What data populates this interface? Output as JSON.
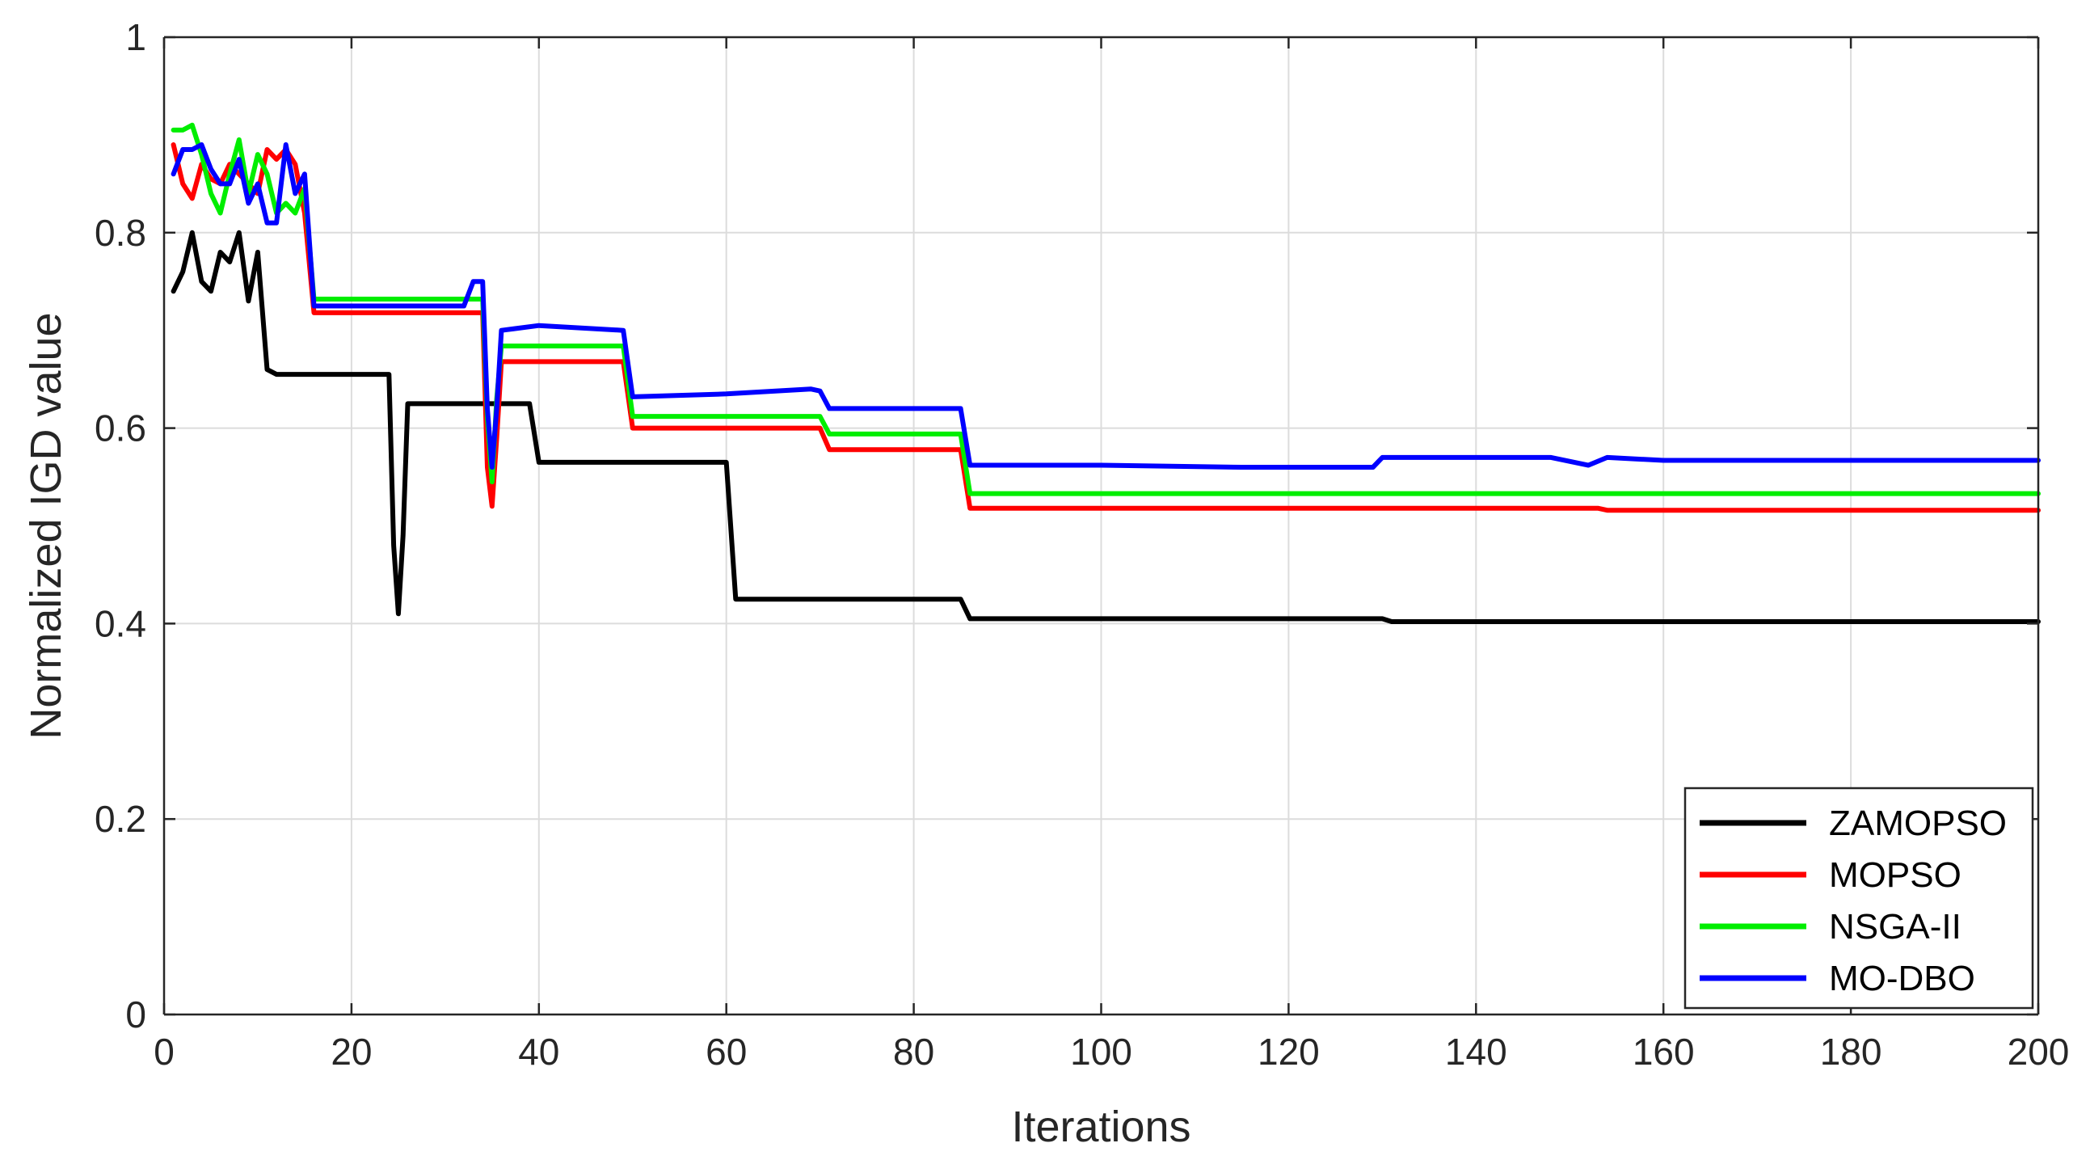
{
  "chart_data": {
    "type": "line",
    "title": "",
    "xlabel": "Iterations",
    "ylabel": "Normalized IGD value",
    "xlim": [
      0,
      200
    ],
    "ylim": [
      0,
      1
    ],
    "xticks": [
      0,
      20,
      40,
      60,
      80,
      100,
      120,
      140,
      160,
      180,
      200
    ],
    "yticks": [
      0,
      0.2,
      0.4,
      0.6,
      0.8,
      1
    ],
    "ytick_labels": [
      "0",
      "0.2",
      "0.4",
      "0.6",
      "0.8",
      "1"
    ],
    "grid": true,
    "legend_position": "bottom-right",
    "series": [
      {
        "name": "ZAMOPSO",
        "color": "#000000",
        "points": [
          [
            1,
            0.74
          ],
          [
            2,
            0.76
          ],
          [
            3,
            0.8
          ],
          [
            4,
            0.75
          ],
          [
            5,
            0.74
          ],
          [
            6,
            0.78
          ],
          [
            7,
            0.77
          ],
          [
            8,
            0.8
          ],
          [
            9,
            0.73
          ],
          [
            10,
            0.78
          ],
          [
            11,
            0.66
          ],
          [
            12,
            0.655
          ],
          [
            24,
            0.655
          ],
          [
            24.5,
            0.48
          ],
          [
            25,
            0.41
          ],
          [
            25.5,
            0.49
          ],
          [
            26,
            0.625
          ],
          [
            39,
            0.625
          ],
          [
            40,
            0.565
          ],
          [
            60,
            0.565
          ],
          [
            61,
            0.425
          ],
          [
            85,
            0.425
          ],
          [
            86,
            0.405
          ],
          [
            130,
            0.405
          ],
          [
            131,
            0.402
          ],
          [
            200,
            0.402
          ]
        ]
      },
      {
        "name": "MOPSO",
        "color": "#ff0000",
        "points": [
          [
            1,
            0.89
          ],
          [
            2,
            0.85
          ],
          [
            3,
            0.835
          ],
          [
            4,
            0.87
          ],
          [
            5,
            0.855
          ],
          [
            6,
            0.85
          ],
          [
            7,
            0.87
          ],
          [
            8,
            0.86
          ],
          [
            9,
            0.85
          ],
          [
            10,
            0.84
          ],
          [
            11,
            0.885
          ],
          [
            12,
            0.875
          ],
          [
            13,
            0.885
          ],
          [
            14,
            0.87
          ],
          [
            15,
            0.82
          ],
          [
            16,
            0.718
          ],
          [
            34,
            0.718
          ],
          [
            34.5,
            0.56
          ],
          [
            35,
            0.52
          ],
          [
            35.5,
            0.59
          ],
          [
            36,
            0.668
          ],
          [
            49,
            0.668
          ],
          [
            50,
            0.6
          ],
          [
            70,
            0.6
          ],
          [
            71,
            0.578
          ],
          [
            85,
            0.578
          ],
          [
            86,
            0.518
          ],
          [
            153,
            0.518
          ],
          [
            154,
            0.516
          ],
          [
            200,
            0.516
          ]
        ]
      },
      {
        "name": "NSGA-II",
        "color": "#00ee00",
        "points": [
          [
            1,
            0.905
          ],
          [
            2,
            0.905
          ],
          [
            3,
            0.91
          ],
          [
            4,
            0.88
          ],
          [
            5,
            0.84
          ],
          [
            6,
            0.82
          ],
          [
            7,
            0.86
          ],
          [
            8,
            0.895
          ],
          [
            9,
            0.84
          ],
          [
            10,
            0.88
          ],
          [
            11,
            0.86
          ],
          [
            12,
            0.82
          ],
          [
            13,
            0.83
          ],
          [
            14,
            0.82
          ],
          [
            15,
            0.845
          ],
          [
            16,
            0.732
          ],
          [
            34,
            0.732
          ],
          [
            34.5,
            0.61
          ],
          [
            35,
            0.545
          ],
          [
            35.5,
            0.63
          ],
          [
            36,
            0.684
          ],
          [
            49,
            0.684
          ],
          [
            50,
            0.612
          ],
          [
            70,
            0.612
          ],
          [
            71,
            0.594
          ],
          [
            85,
            0.594
          ],
          [
            86,
            0.533
          ],
          [
            200,
            0.533
          ]
        ]
      },
      {
        "name": "MO-DBO",
        "color": "#0000ff",
        "points": [
          [
            1,
            0.86
          ],
          [
            2,
            0.885
          ],
          [
            3,
            0.885
          ],
          [
            4,
            0.89
          ],
          [
            5,
            0.865
          ],
          [
            6,
            0.85
          ],
          [
            7,
            0.85
          ],
          [
            8,
            0.875
          ],
          [
            9,
            0.83
          ],
          [
            10,
            0.85
          ],
          [
            11,
            0.81
          ],
          [
            12,
            0.81
          ],
          [
            13,
            0.89
          ],
          [
            14,
            0.84
          ],
          [
            15,
            0.86
          ],
          [
            16,
            0.725
          ],
          [
            32,
            0.725
          ],
          [
            33,
            0.75
          ],
          [
            34,
            0.75
          ],
          [
            34.5,
            0.62
          ],
          [
            35,
            0.56
          ],
          [
            35.5,
            0.62
          ],
          [
            36,
            0.7
          ],
          [
            40,
            0.705
          ],
          [
            49,
            0.7
          ],
          [
            50,
            0.632
          ],
          [
            60,
            0.635
          ],
          [
            69,
            0.64
          ],
          [
            70,
            0.638
          ],
          [
            71,
            0.62
          ],
          [
            85,
            0.62
          ],
          [
            86,
            0.562
          ],
          [
            100,
            0.562
          ],
          [
            115,
            0.56
          ],
          [
            129,
            0.56
          ],
          [
            130,
            0.57
          ],
          [
            148,
            0.57
          ],
          [
            152,
            0.562
          ],
          [
            154,
            0.57
          ],
          [
            160,
            0.567
          ],
          [
            200,
            0.567
          ]
        ]
      }
    ]
  }
}
